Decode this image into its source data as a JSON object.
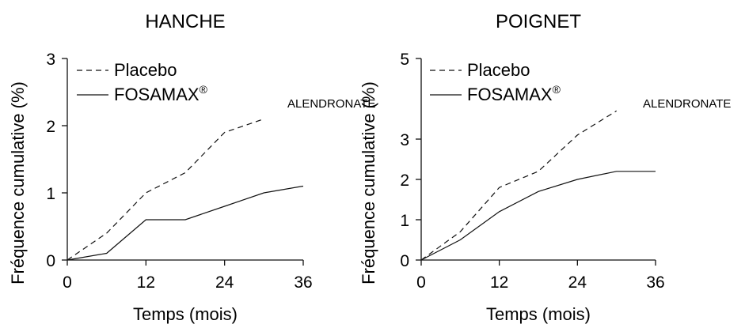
{
  "chart_data": [
    {
      "type": "line",
      "title": "HANCHE",
      "xlabel": "Temps (mois)",
      "ylabel": "Fréquence cumulative (%)",
      "xlim": [
        0,
        36
      ],
      "ylim": [
        0,
        3
      ],
      "xticks": [
        "0",
        "12",
        "24",
        "36"
      ],
      "yticks": [
        "0",
        "1",
        "2",
        "3"
      ],
      "legend": {
        "placement": "top-left"
      },
      "overlay_label": "ALENDRONATE",
      "series": [
        {
          "name": "Placebo",
          "style": "dashed",
          "x": [
            0,
            6,
            12,
            18,
            24,
            30
          ],
          "y": [
            0,
            0.4,
            1.0,
            1.3,
            1.9,
            2.1
          ]
        },
        {
          "name": "FOSAMAX®",
          "style": "solid",
          "x": [
            0,
            6,
            12,
            18,
            24,
            30,
            36
          ],
          "y": [
            0,
            0.1,
            0.6,
            0.6,
            0.8,
            1.0,
            1.1
          ]
        }
      ]
    },
    {
      "type": "line",
      "title": "POIGNET",
      "xlabel": "Temps (mois)",
      "ylabel": "Fréquence cumulative (%)",
      "xlim": [
        0,
        36
      ],
      "ylim": [
        0,
        5
      ],
      "xticks": [
        "0",
        "12",
        "24",
        "36"
      ],
      "yticks": [
        "0",
        "1",
        "2",
        "3",
        "5"
      ],
      "legend": {
        "placement": "top-left"
      },
      "overlay_label": "ALENDRONATE",
      "series": [
        {
          "name": "Placebo",
          "style": "dashed",
          "x": [
            0,
            6,
            12,
            18,
            24,
            30
          ],
          "y": [
            0,
            0.7,
            1.8,
            2.2,
            3.1,
            3.7
          ]
        },
        {
          "name": "FOSAMAX®",
          "style": "solid",
          "x": [
            0,
            6,
            12,
            18,
            24,
            30,
            36
          ],
          "y": [
            0,
            0.5,
            1.2,
            1.7,
            2.0,
            2.2,
            2.2
          ]
        }
      ]
    }
  ]
}
